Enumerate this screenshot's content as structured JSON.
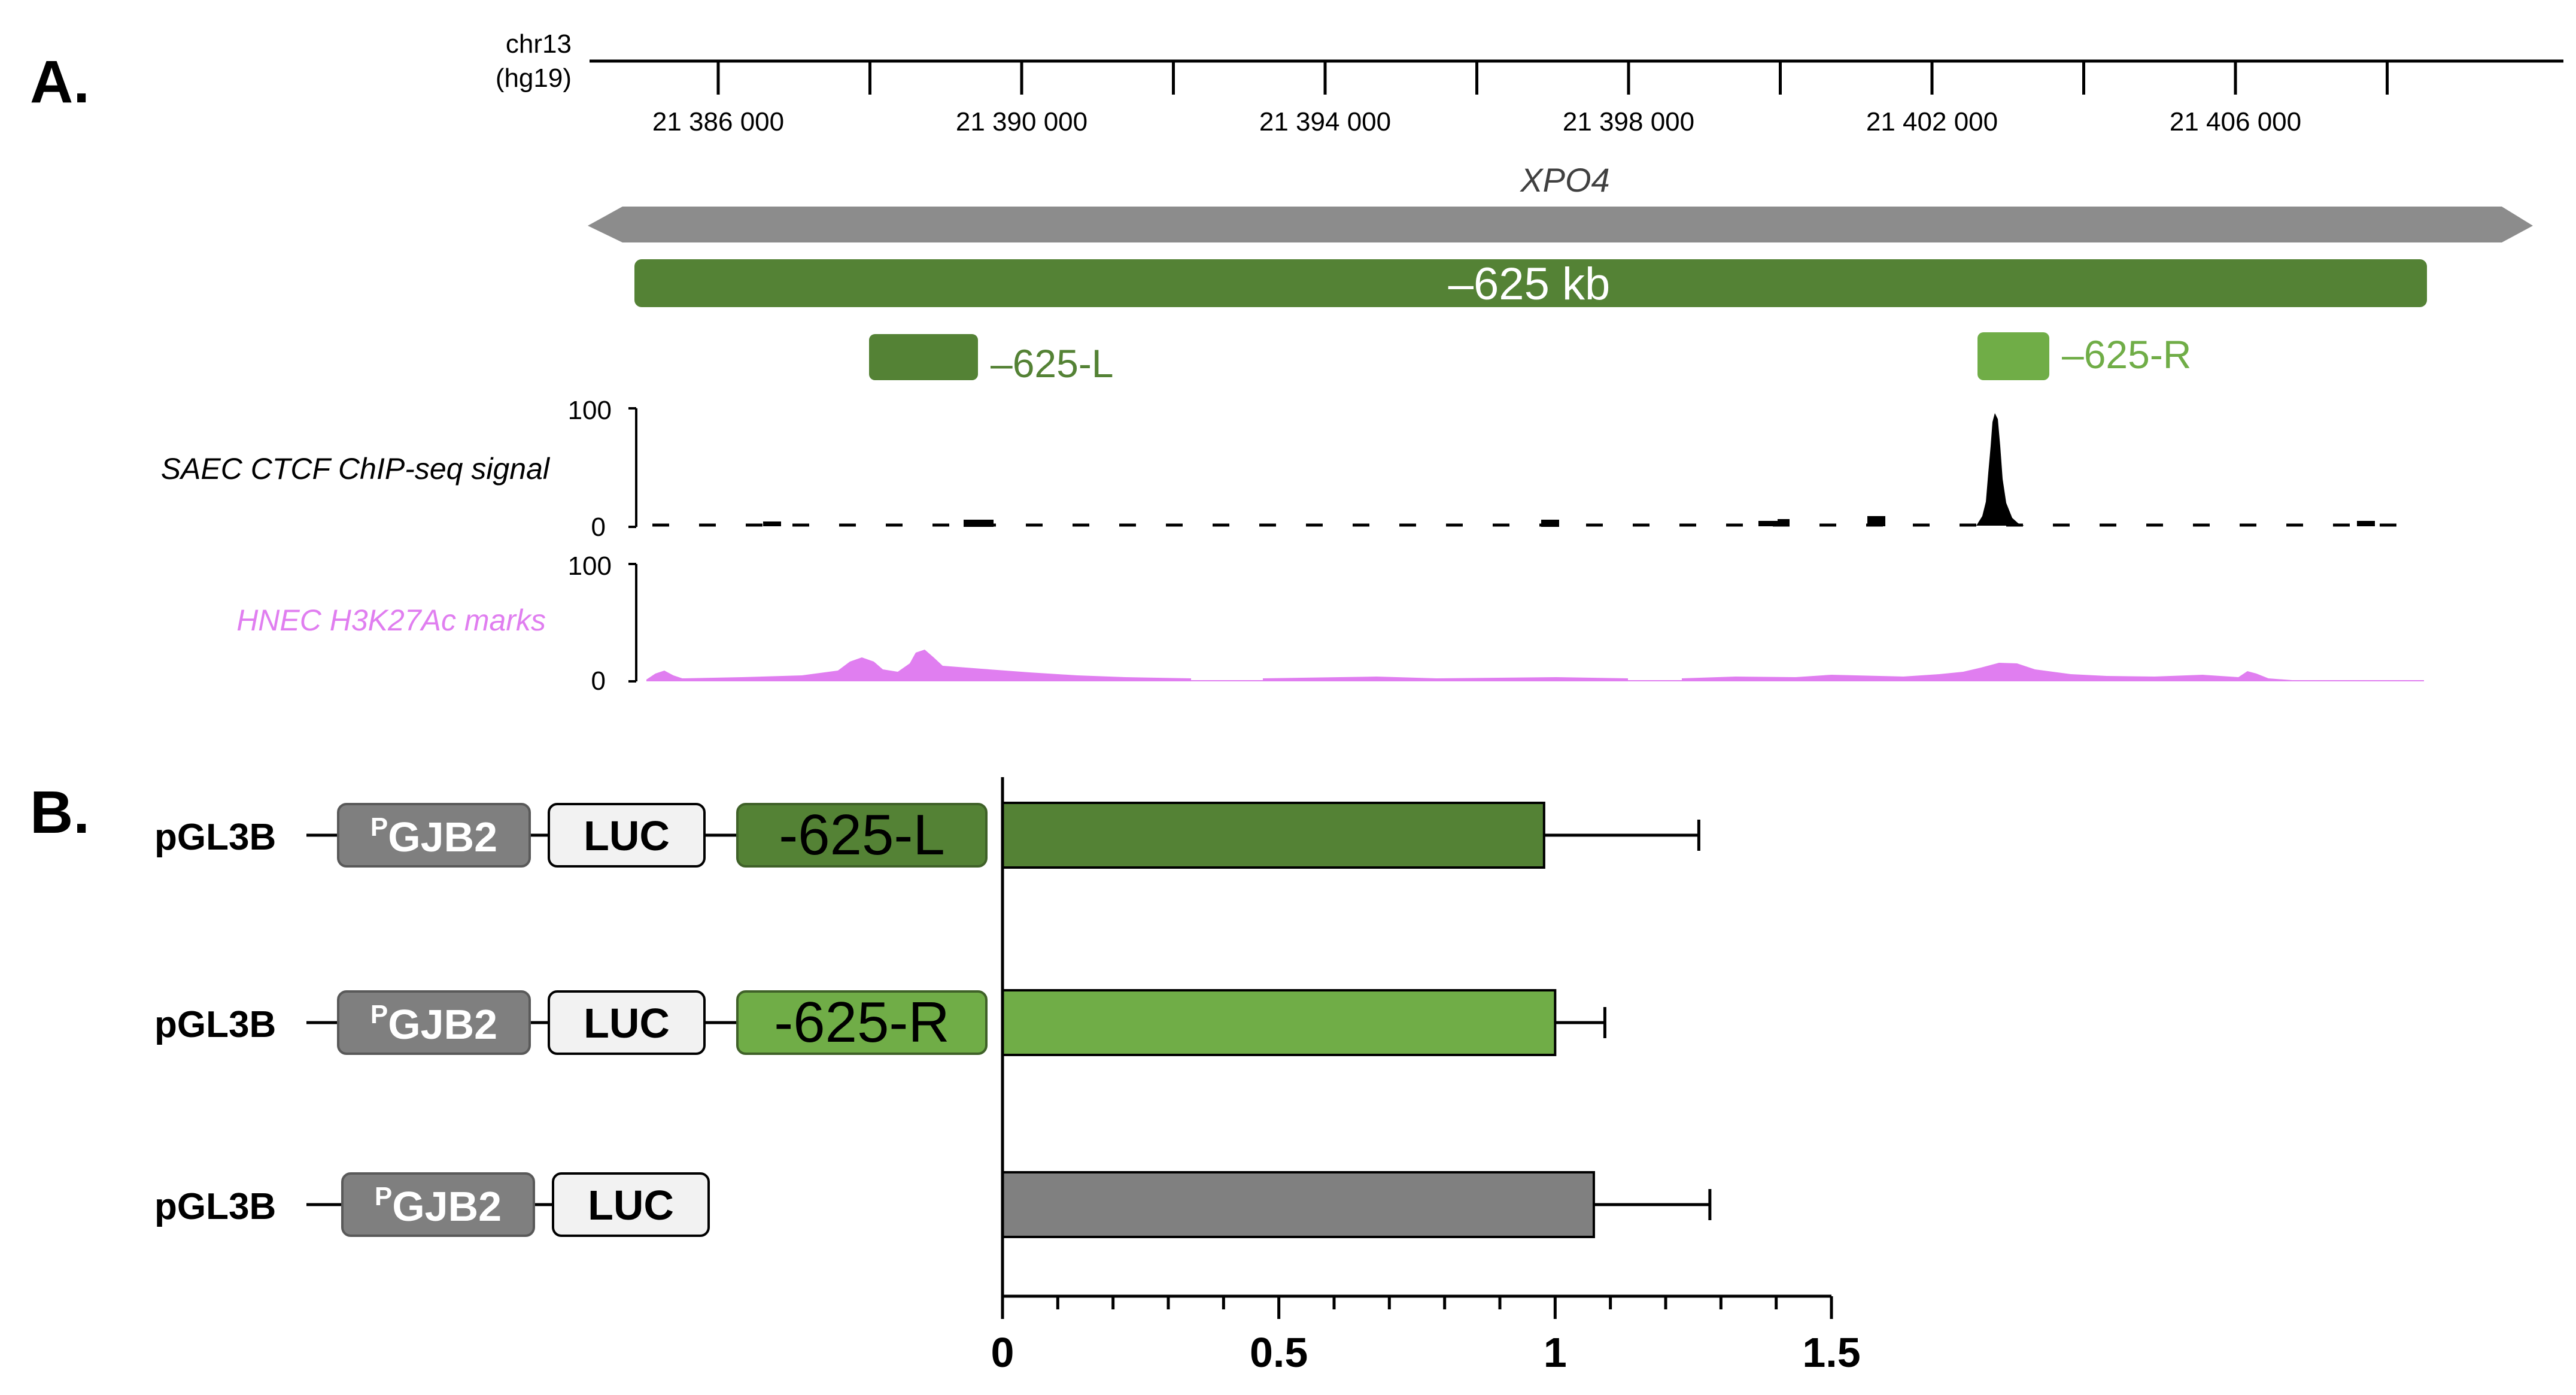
{
  "panel_a": {
    "label": "A.",
    "chrom": "chr13",
    "assembly": "(hg19)",
    "axis": {
      "ticks": [
        21385000,
        21387000,
        21389000,
        21391000,
        21393000,
        21395000,
        21397000,
        21399000,
        21401000,
        21403000,
        21405000,
        21407000
      ],
      "labeled_ticks": [
        {
          "pos": 21385000,
          "label": "21 386 000"
        },
        {
          "pos": 21389000,
          "label": "21 390 000"
        },
        {
          "pos": 21393000,
          "label": "21 394 000"
        },
        {
          "pos": 21397000,
          "label": "21 398 000"
        },
        {
          "pos": 21401000,
          "label": "21 402 000"
        },
        {
          "pos": 21405000,
          "label": "21 406 000"
        }
      ]
    },
    "gene": {
      "name": "XPO4",
      "color": "#8c8c8c"
    },
    "region": {
      "label": "–625 kb",
      "color": "#548235"
    },
    "sub_regions": [
      {
        "label": "–625-L",
        "color": "#548235"
      },
      {
        "label": "–625-R",
        "color": "#70ad47"
      }
    ],
    "tracks": [
      {
        "name": "SAEC CTCF ChIP-seq signal",
        "ymax": "100",
        "ymin": "0",
        "color": "#000000"
      },
      {
        "name": "HNEC H3K27Ac marks",
        "ymax": "100",
        "ymin": "0",
        "color": "#e07ef0"
      }
    ]
  },
  "panel_b": {
    "label": "B.",
    "constructs": [
      {
        "vector": "pGL3B",
        "promoter_sup": "P",
        "promoter": "GJB2",
        "reporter": "LUC",
        "enhancer": "-625-L",
        "enhancer_color": "#548235"
      },
      {
        "vector": "pGL3B",
        "promoter_sup": "P",
        "promoter": "GJB2",
        "reporter": "LUC",
        "enhancer": "-625-R",
        "enhancer_color": "#70ad47"
      },
      {
        "vector": "pGL3B",
        "promoter_sup": "P",
        "promoter": "GJB2",
        "reporter": "LUC",
        "enhancer": null,
        "enhancer_color": null
      }
    ]
  },
  "chart_data": {
    "type": "bar",
    "orientation": "horizontal",
    "categories": [
      "pGL3B PGJB2 LUC -625-L",
      "pGL3B PGJB2 LUC -625-R",
      "pGL3B PGJB2 LUC"
    ],
    "values": [
      0.98,
      1.0,
      1.07
    ],
    "errors": [
      0.28,
      0.09,
      0.21
    ],
    "colors": [
      "#548235",
      "#70ad47",
      "#808080"
    ],
    "xlim": [
      0,
      1.5
    ],
    "xticks": [
      0,
      0.5,
      1,
      1.5
    ],
    "xtick_labels": [
      "0",
      "0.5",
      "1",
      "1.5"
    ],
    "title": "",
    "xlabel": "",
    "ylabel": ""
  }
}
